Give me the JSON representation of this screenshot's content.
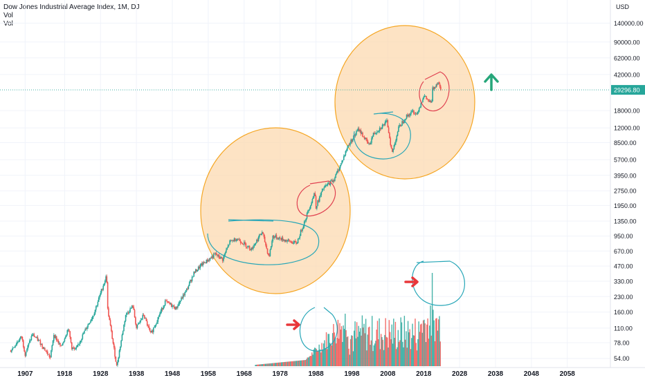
{
  "legend": {
    "title": "Dow Jones Industrial Average Index, 1M, DJ",
    "line2": "Vol",
    "line3": "Vol"
  },
  "colors": {
    "up": "#26a69a",
    "down": "#ef5350",
    "circle_fill": "#fcd9b0",
    "circle_stroke": "#f5a623",
    "teal_annotation": "#26a6b7",
    "red_annotation": "#e04050",
    "arrow_red": "#e8373a",
    "arrow_green": "#26a67a",
    "price_line": "#26a69a",
    "price_label_bg": "#26a69a"
  },
  "chart_data": {
    "type": "line",
    "title": "Dow Jones Industrial Average Index, 1M, DJ",
    "currency": "USD",
    "y_scale": "log",
    "x_range": [
      1900,
      2070
    ],
    "y_range_visible": [
      45,
      180000
    ],
    "y_tick_labels": [
      "140000.00",
      "90000.00",
      "62000.00",
      "42000.00",
      "18000.00",
      "12000.00",
      "8500.00",
      "5700.00",
      "3950.00",
      "2750.00",
      "1950.00",
      "1350.00",
      "950.00",
      "670.00",
      "470.00",
      "330.00",
      "230.00",
      "160.00",
      "110.00",
      "78.00",
      "54.00"
    ],
    "x_tick_labels": [
      "1907",
      "1918",
      "1928",
      "1938",
      "1948",
      "1958",
      "1968",
      "1978",
      "1988",
      "1998",
      "2008",
      "2018",
      "2028",
      "2038",
      "2048",
      "2058"
    ],
    "last_price_label": "29296.80",
    "last_price": 29296.8,
    "series": [
      {
        "x": [
          1903,
          1906,
          1907,
          1909,
          1911,
          1914,
          1915,
          1917,
          1919,
          1920,
          1921,
          1924,
          1926,
          1929.7,
          1930,
          1932.5,
          1935,
          1937,
          1938,
          1940,
          1942,
          1946,
          1949,
          1952,
          1954,
          1956,
          1960,
          1962,
          1964,
          1966,
          1970,
          1973,
          1974.9,
          1976,
          1980,
          1982.6,
          1985,
          1987.7,
          1987.9,
          1990,
          1993,
          1995,
          1997,
          1999.9,
          2002.8,
          2004,
          2007.8,
          2009.2,
          2011,
          2013,
          2015,
          2016,
          2018,
          2020.2,
          2020.4,
          2022,
          2022.8
        ],
        "y": [
          65,
          90,
          60,
          95,
          80,
          55,
          95,
          70,
          110,
          70,
          65,
          110,
          150,
          380,
          170,
          45,
          150,
          185,
          110,
          150,
          95,
          205,
          175,
          270,
          400,
          480,
          620,
          550,
          830,
          900,
          700,
          1050,
          580,
          950,
          850,
          800,
          1400,
          2700,
          1850,
          2900,
          3600,
          5200,
          8000,
          11700,
          8000,
          10400,
          13900,
          6600,
          12000,
          15500,
          17700,
          16500,
          25500,
          21000,
          29500,
          35500,
          30000
        ]
      }
    ],
    "annotations": [
      {
        "type": "circle",
        "label": "highlight 1958-1993"
      },
      {
        "type": "circle",
        "label": "highlight 1996-2025"
      },
      {
        "type": "arrow",
        "direction": "up",
        "color": "green"
      },
      {
        "type": "arrow",
        "direction": "right",
        "color": "red"
      },
      {
        "type": "arrow",
        "direction": "right",
        "color": "red"
      }
    ]
  }
}
